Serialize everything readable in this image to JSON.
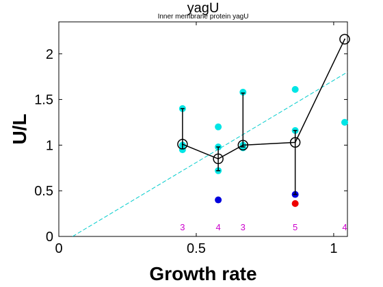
{
  "chart_data": {
    "type": "scatter",
    "title": "yagU",
    "subtitle": "Inner membrane protein yagU",
    "xlabel": "Growth rate",
    "ylabel": "U/L",
    "xlim": [
      0,
      1.05
    ],
    "ylim": [
      0,
      2.35
    ],
    "xticks": [
      0,
      0.5,
      1
    ],
    "xtick_labels": [
      "0",
      "0.5",
      "1"
    ],
    "yticks": [
      0,
      0.5,
      1,
      1.5,
      2
    ],
    "ytick_labels": [
      "0",
      "0.5",
      "1",
      "1.5",
      "2"
    ],
    "grid": false,
    "legend": "none",
    "series": [
      {
        "role": "replicates",
        "color": "#00e5e5",
        "points": [
          {
            "x": 0.45,
            "y": 1.4
          },
          {
            "x": 0.45,
            "y": 1.0
          },
          {
            "x": 0.45,
            "y": 0.95
          },
          {
            "x": 0.58,
            "y": 1.2
          },
          {
            "x": 0.58,
            "y": 0.98
          },
          {
            "x": 0.58,
            "y": 0.72
          },
          {
            "x": 0.67,
            "y": 1.58
          },
          {
            "x": 0.67,
            "y": 1.0
          },
          {
            "x": 0.67,
            "y": 0.97
          },
          {
            "x": 0.86,
            "y": 1.61
          },
          {
            "x": 0.86,
            "y": 1.16
          },
          {
            "x": 1.04,
            "y": 1.25
          }
        ]
      },
      {
        "role": "outliers-blue",
        "color": "#0000dd",
        "points": [
          {
            "x": 0.58,
            "y": 0.4
          },
          {
            "x": 0.86,
            "y": 0.46
          }
        ]
      },
      {
        "role": "outliers-red",
        "color": "#ee0000",
        "points": [
          {
            "x": 0.86,
            "y": 0.36
          }
        ]
      },
      {
        "role": "median",
        "color": "#000000",
        "points": [
          {
            "x": 0.45,
            "y": 1.01,
            "err_low": 0.96,
            "err_high": 1.4
          },
          {
            "x": 0.58,
            "y": 0.85,
            "err_low": 0.72,
            "err_high": 0.98
          },
          {
            "x": 0.67,
            "y": 1.0,
            "err_low": 0.98,
            "err_high": 1.57
          },
          {
            "x": 0.86,
            "y": 1.03,
            "err_low": 0.46,
            "err_high": 1.16
          },
          {
            "x": 1.04,
            "y": 2.16,
            "err_low": 2.16,
            "err_high": 2.16
          }
        ]
      }
    ],
    "trend_line": {
      "color": "#00cccc",
      "style": "dashed",
      "x": [
        0.05,
        1.05
      ],
      "y": [
        0,
        1.8
      ]
    },
    "counts": [
      {
        "x": 0.45,
        "label": "3"
      },
      {
        "x": 0.58,
        "label": "4"
      },
      {
        "x": 0.67,
        "label": "3"
      },
      {
        "x": 0.86,
        "label": "5"
      },
      {
        "x": 1.04,
        "label": "4"
      }
    ],
    "count_color": "#cc00cc"
  }
}
